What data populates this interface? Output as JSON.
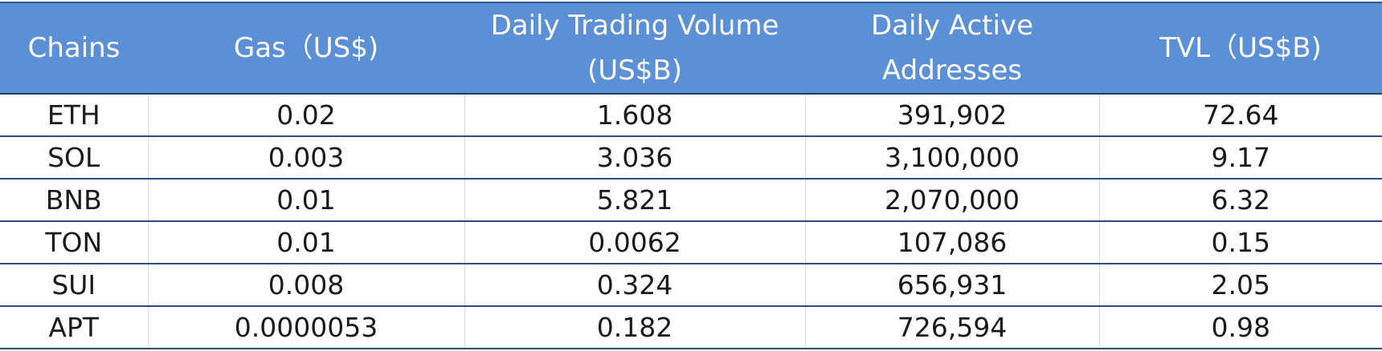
{
  "chart_data": {
    "type": "table",
    "columns": [
      "Chains",
      "Gas（US$)",
      "Daily Trading Volume\n(US$B)",
      "Daily Active\nAddresses",
      "TVL（US$B)"
    ],
    "rows": [
      [
        "ETH",
        "0.02",
        "1.608",
        "391,902",
        "72.64"
      ],
      [
        "SOL",
        "0.003",
        "3.036",
        "3,100,000",
        "9.17"
      ],
      [
        "BNB",
        "0.01",
        "5.821",
        "2,070,000",
        "6.32"
      ],
      [
        "TON",
        "0.01",
        "0.0062",
        "107,086",
        "0.15"
      ],
      [
        "SUI",
        "0.008",
        "0.324",
        "656,931",
        "2.05"
      ],
      [
        "APT",
        "0.0000053",
        "0.182",
        "726,594",
        "0.98"
      ]
    ]
  },
  "colors": {
    "header_bg": "#5b8fd6",
    "header_text": "#ffffff",
    "row_border": "#2c4f7a",
    "cell_text": "#1a1a1a"
  }
}
